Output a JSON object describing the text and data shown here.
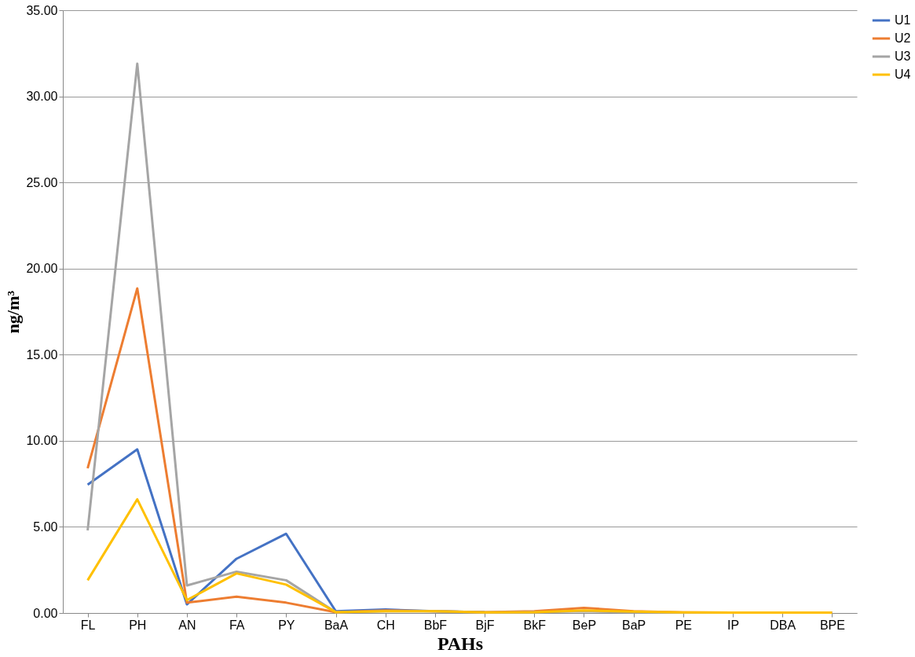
{
  "chart_data": {
    "type": "line",
    "xlabel": "PAHs",
    "ylabel": "ng/m³",
    "categories": [
      "FL",
      "PH",
      "AN",
      "FA",
      "PY",
      "BaA",
      "CH",
      "BbF",
      "BjF",
      "BkF",
      "BeP",
      "BaP",
      "PE",
      "IP",
      "DBA",
      "BPE"
    ],
    "series": [
      {
        "name": "U1",
        "color": "#4472c4",
        "values": [
          7.45,
          9.5,
          0.5,
          3.15,
          4.6,
          0.1,
          0.2,
          0.1,
          0.05,
          null,
          null,
          null,
          null,
          null,
          null,
          null
        ]
      },
      {
        "name": "U2",
        "color": "#ed7d31",
        "values": [
          8.4,
          18.85,
          0.6,
          0.95,
          0.6,
          0.05,
          0.15,
          0.1,
          0.05,
          0.1,
          0.3,
          0.1,
          0.03,
          0.02,
          0.02,
          0.02
        ]
      },
      {
        "name": "U3",
        "color": "#a5a5a5",
        "values": [
          4.8,
          31.9,
          1.6,
          2.4,
          1.9,
          0.05,
          0.1,
          0.1,
          0.03,
          0.05,
          0.1,
          0.05,
          0.02,
          0.02,
          0.02,
          0.02
        ]
      },
      {
        "name": "U4",
        "color": "#ffc000",
        "values": [
          1.9,
          6.6,
          0.75,
          2.3,
          1.65,
          0.05,
          0.1,
          0.1,
          0.03,
          0.05,
          0.15,
          0.08,
          0.03,
          0.02,
          0.02,
          0.02
        ]
      }
    ],
    "ylim": [
      0,
      35
    ],
    "yticks": [
      {
        "value": 0,
        "label": "0.00"
      },
      {
        "value": 5,
        "label": "5.00"
      },
      {
        "value": 10,
        "label": "10.00"
      },
      {
        "value": 15,
        "label": "15.00"
      },
      {
        "value": 20,
        "label": "20.00"
      },
      {
        "value": 25,
        "label": "25.00"
      },
      {
        "value": 30,
        "label": "30.00"
      },
      {
        "value": 35,
        "label": "35.00"
      }
    ],
    "grid": "y",
    "legend": "right",
    "marker": "none",
    "line_style": "solid"
  }
}
